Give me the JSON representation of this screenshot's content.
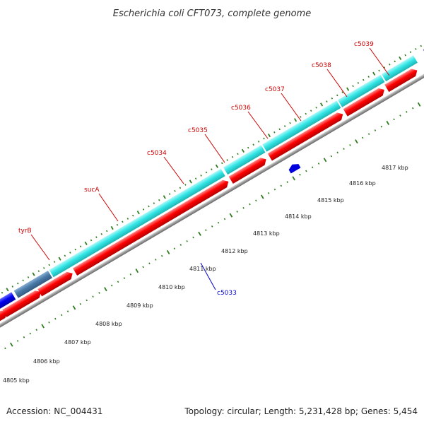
{
  "title": "Escherichia coli CFT073, complete genome",
  "footer": {
    "accession": "Accession: NC_004431",
    "summary": "Topology: circular; Length: 5,231,428 bp; Genes: 5,454"
  },
  "scale_labels": [
    {
      "kb": 4805,
      "text": "4805 kbp"
    },
    {
      "kb": 4806,
      "text": "4806 kbp"
    },
    {
      "kb": 4807,
      "text": "4807 kbp"
    },
    {
      "kb": 4808,
      "text": "4808 kbp"
    },
    {
      "kb": 4809,
      "text": "4809 kbp"
    },
    {
      "kb": 4810,
      "text": "4810 kbp"
    },
    {
      "kb": 4811,
      "text": "4811 kbp"
    },
    {
      "kb": 4812,
      "text": "4812 kbp"
    },
    {
      "kb": 4813,
      "text": "4813 kbp"
    },
    {
      "kb": 4814,
      "text": "4814 kbp"
    },
    {
      "kb": 4815,
      "text": "4815 kbp"
    },
    {
      "kb": 4816,
      "text": "4816 kbp"
    },
    {
      "kb": 4817,
      "text": "4817 kbp"
    }
  ],
  "gene_labels": [
    {
      "name": "tyrB",
      "color": "#cc0000"
    },
    {
      "name": "sucA",
      "color": "#cc0000"
    },
    {
      "name": "c5034",
      "color": "#cc0000"
    },
    {
      "name": "c5035",
      "color": "#cc0000"
    },
    {
      "name": "c5036",
      "color": "#cc0000"
    },
    {
      "name": "c5037",
      "color": "#cc0000"
    },
    {
      "name": "c5038",
      "color": "#cc0000"
    },
    {
      "name": "c5039",
      "color": "#cc0000"
    },
    {
      "name": "c5033",
      "color": "#0000cc"
    }
  ],
  "colors": {
    "cds_forward": "#ff0000",
    "gene_cyan": "#33e6e6",
    "gene_blue": "#0000ee",
    "gene_steel": "#4a7aa8",
    "gene_purple": "#4a3f8c",
    "backbone": "#999999",
    "tick": "#2e7d1e"
  }
}
